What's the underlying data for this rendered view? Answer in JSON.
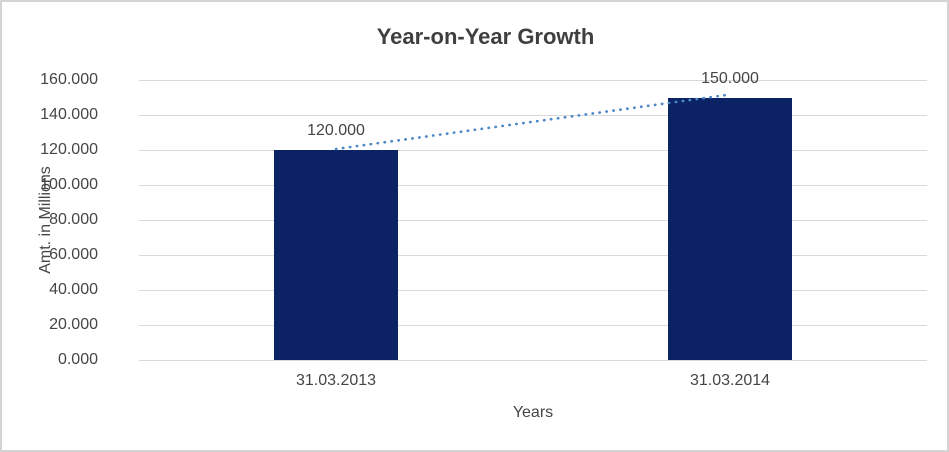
{
  "window": {
    "title": "Year-on-Year Growth chart"
  },
  "colors": {
    "bar": "#0B2365",
    "trendline": "#4C87C8",
    "gridline": "#D9D9D9",
    "axis_text": "#454545",
    "title_text": "#3F3F3F",
    "frame_border": "#D4D4D4",
    "background": "#FFFFFF"
  },
  "chart_data": {
    "type": "bar",
    "title": "Year-on-Year Growth",
    "xlabel": "Years",
    "ylabel": "Amt. in Millions",
    "categories": [
      "31.03.2013",
      "31.03.2014"
    ],
    "values": [
      120,
      150
    ],
    "data_labels": [
      "120.000",
      "150.000"
    ],
    "ylim": [
      0,
      160
    ],
    "ytick_step": 20,
    "ytick_labels": [
      "160.000",
      "140.000",
      "120.000",
      "100.000",
      "80.000",
      "60.000",
      "40.000",
      "20.000",
      "0.000"
    ],
    "grid": true,
    "legend_position": "none",
    "trendline": {
      "style": "dotted",
      "from_value": 120,
      "to_value": 150
    }
  }
}
